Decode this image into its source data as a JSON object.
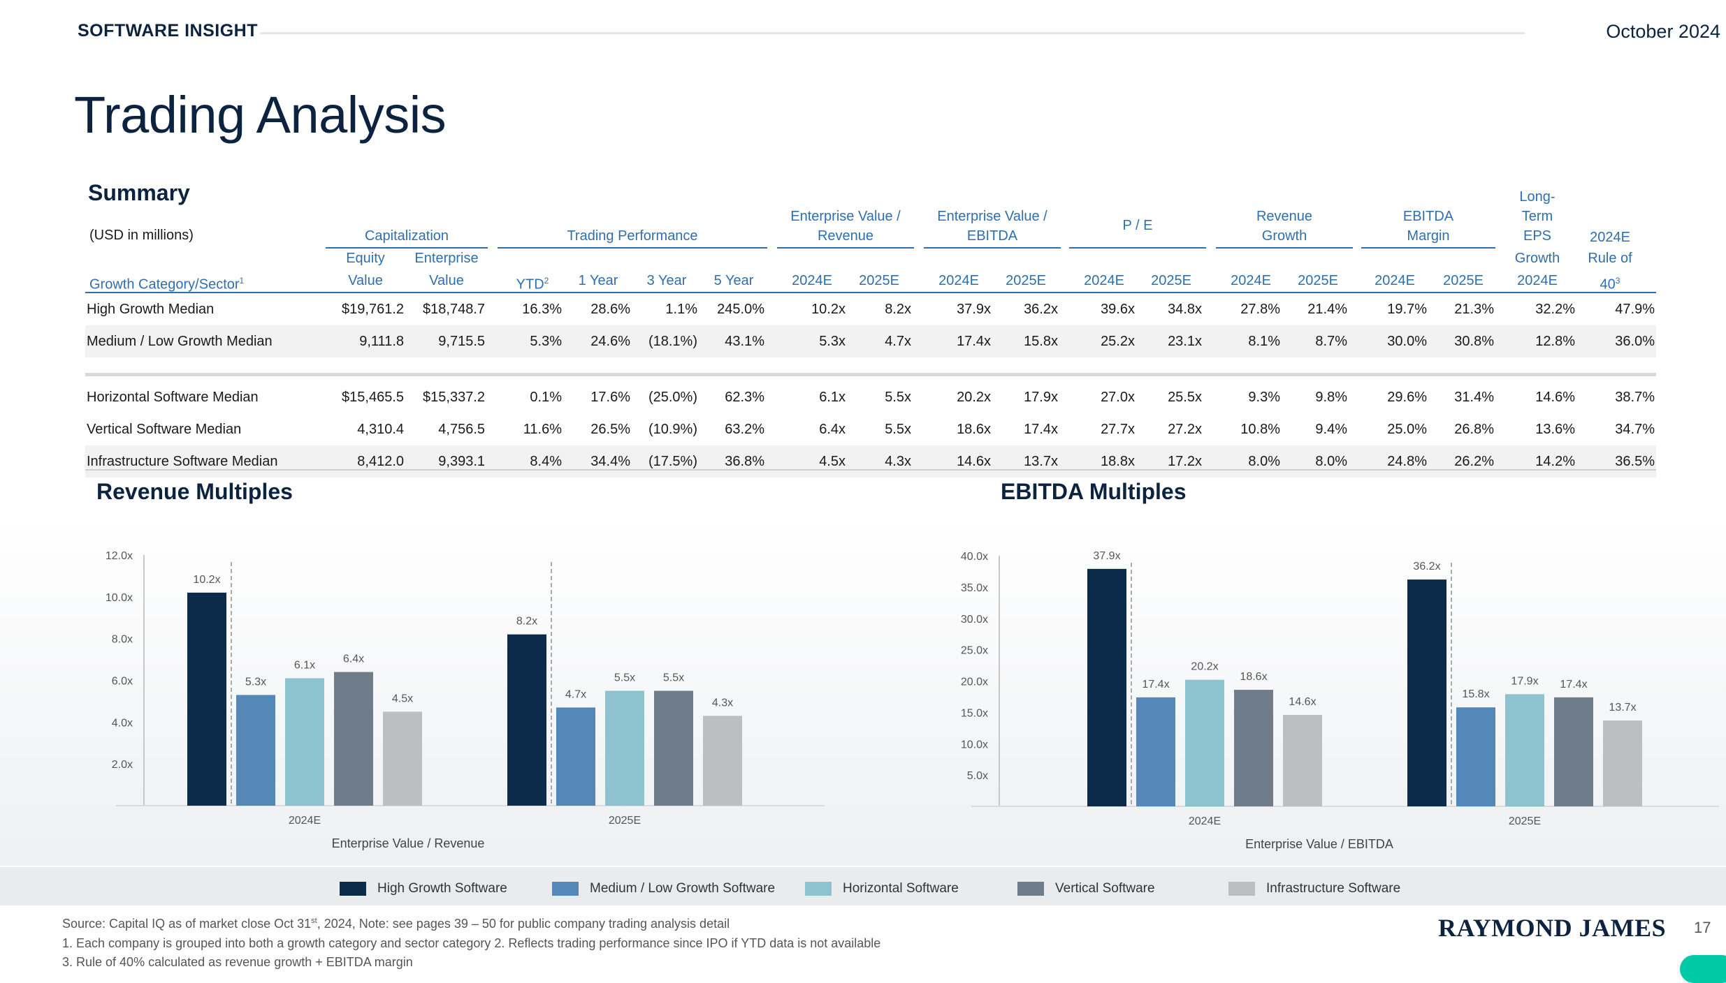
{
  "header": {
    "label": "SOFTWARE INSIGHT",
    "date": "October 2024"
  },
  "title": "Trading Analysis",
  "table": {
    "section_title": "Summary",
    "units_note": "(USD in millions)",
    "groups": {
      "capitalization": "Capitalization",
      "trading_performance": "Trading Performance",
      "ev_revenue": [
        "Enterprise Value /",
        "Revenue"
      ],
      "ev_ebitda": [
        "Enterprise Value /",
        "EBITDA"
      ],
      "pe": "P / E",
      "revenue_growth": [
        "Revenue",
        "Growth"
      ],
      "ebitda_margin": [
        "EBITDA",
        "Margin"
      ],
      "lt_eps": [
        "Long-",
        "Term",
        "EPS",
        "Growth",
        "2024E"
      ],
      "rule40": [
        "2024E",
        "Rule of",
        "40"
      ],
      "rule40_sup": "3"
    },
    "columns": {
      "sector": "Growth Category/Sector",
      "sector_sup": "1",
      "equity": [
        "Equity",
        "Value"
      ],
      "enterprise": [
        "Enterprise",
        "Value"
      ],
      "ytd": "YTD",
      "ytd_sup": "2",
      "y1": "1 Year",
      "y3": "3 Year",
      "y5": "5 Year",
      "e2024": "2024E",
      "e2025": "2025E"
    },
    "rows": [
      {
        "label": "High Growth Median",
        "values": [
          "$19,761.2",
          "$18,748.7",
          "16.3%",
          "28.6%",
          "1.1%",
          "245.0%",
          "10.2x",
          "8.2x",
          "37.9x",
          "36.2x",
          "39.6x",
          "34.8x",
          "27.8%",
          "21.4%",
          "19.7%",
          "21.3%",
          "32.2%",
          "47.9%"
        ]
      },
      {
        "label": "Medium / Low Growth Median",
        "values": [
          "9,111.8",
          "9,715.5",
          "5.3%",
          "24.6%",
          "(18.1%)",
          "43.1%",
          "5.3x",
          "4.7x",
          "17.4x",
          "15.8x",
          "25.2x",
          "23.1x",
          "8.1%",
          "8.7%",
          "30.0%",
          "30.8%",
          "12.8%",
          "36.0%"
        ]
      },
      {
        "label": "Horizontal Software Median",
        "values": [
          "$15,465.5",
          "$15,337.2",
          "0.1%",
          "17.6%",
          "(25.0%)",
          "62.3%",
          "6.1x",
          "5.5x",
          "20.2x",
          "17.9x",
          "27.0x",
          "25.5x",
          "9.3%",
          "9.8%",
          "29.6%",
          "31.4%",
          "14.6%",
          "38.7%"
        ]
      },
      {
        "label": "Vertical Software Median",
        "values": [
          "4,310.4",
          "4,756.5",
          "11.6%",
          "26.5%",
          "(10.9%)",
          "63.2%",
          "6.4x",
          "5.5x",
          "18.6x",
          "17.4x",
          "27.7x",
          "27.2x",
          "10.8%",
          "9.4%",
          "25.0%",
          "26.8%",
          "13.6%",
          "34.7%"
        ]
      },
      {
        "label": "Infrastructure Software Median",
        "values": [
          "8,412.0",
          "9,393.1",
          "8.4%",
          "34.4%",
          "(17.5%)",
          "36.8%",
          "4.5x",
          "4.3x",
          "14.6x",
          "13.7x",
          "18.8x",
          "17.2x",
          "8.0%",
          "8.0%",
          "24.8%",
          "26.2%",
          "14.2%",
          "36.5%"
        ]
      }
    ]
  },
  "chart_data": [
    {
      "type": "bar",
      "title": "Revenue Multiples",
      "xlabel": "Enterprise Value / Revenue",
      "categories": [
        "2024E",
        "2025E"
      ],
      "yticks": [
        "2.0x",
        "4.0x",
        "6.0x",
        "8.0x",
        "10.0x",
        "12.0x"
      ],
      "ylim": [
        0,
        12
      ],
      "series": [
        {
          "name": "High Growth Software",
          "values": [
            10.2,
            8.2
          ],
          "labels": [
            "10.2x",
            "8.2x"
          ]
        },
        {
          "name": "Medium / Low Growth Software",
          "values": [
            5.3,
            4.7
          ],
          "labels": [
            "5.3x",
            "4.7x"
          ]
        },
        {
          "name": "Horizontal Software",
          "values": [
            6.1,
            5.5
          ],
          "labels": [
            "6.1x",
            "5.5x"
          ]
        },
        {
          "name": "Vertical Software",
          "values": [
            6.4,
            5.5
          ],
          "labels": [
            "6.4x",
            "5.5x"
          ]
        },
        {
          "name": "Infrastructure Software",
          "values": [
            4.5,
            4.3
          ],
          "labels": [
            "4.5x",
            "4.3x"
          ]
        }
      ]
    },
    {
      "type": "bar",
      "title": "EBITDA Multiples",
      "xlabel": "Enterprise Value / EBITDA",
      "categories": [
        "2024E",
        "2025E"
      ],
      "yticks": [
        "5.0x",
        "10.0x",
        "15.0x",
        "20.0x",
        "25.0x",
        "30.0x",
        "35.0x",
        "40.0x"
      ],
      "ylim": [
        0,
        40
      ],
      "series": [
        {
          "name": "High Growth Software",
          "values": [
            37.9,
            36.2
          ],
          "labels": [
            "37.9x",
            "36.2x"
          ]
        },
        {
          "name": "Medium / Low Growth Software",
          "values": [
            17.4,
            15.8
          ],
          "labels": [
            "17.4x",
            "15.8x"
          ]
        },
        {
          "name": "Horizontal Software",
          "values": [
            20.2,
            17.9
          ],
          "labels": [
            "20.2x",
            "17.9x"
          ]
        },
        {
          "name": "Vertical Software",
          "values": [
            18.6,
            17.4
          ],
          "labels": [
            "18.6x",
            "17.4x"
          ]
        },
        {
          "name": "Infrastructure Software",
          "values": [
            14.6,
            13.7
          ],
          "labels": [
            "14.6x",
            "13.7x"
          ]
        }
      ]
    }
  ],
  "colors": {
    "High Growth Software": "#0c2a4a",
    "Medium / Low Growth Software": "#5488b8",
    "Horizontal Software": "#8cc3cf",
    "Vertical Software": "#6f7c8a",
    "Infrastructure Software": "#bdbec1"
  },
  "legend": [
    "High Growth Software",
    "Medium / Low Growth Software",
    "Horizontal Software",
    "Vertical Software",
    "Infrastructure Software"
  ],
  "footer": {
    "source_a": "Source: Capital IQ as of market close Oct 31",
    "source_sup": "st",
    "source_b": ", 2024, Note: see pages 39 – 50 for public company trading analysis detail",
    "note1": "1. Each company is grouped into both a growth category and sector category   2. Reflects trading performance since IPO if YTD data is not available",
    "note2": "3. Rule of 40% calculated as revenue growth + EBITDA margin"
  },
  "logo": "RAYMOND JAMES",
  "page_number": "17"
}
